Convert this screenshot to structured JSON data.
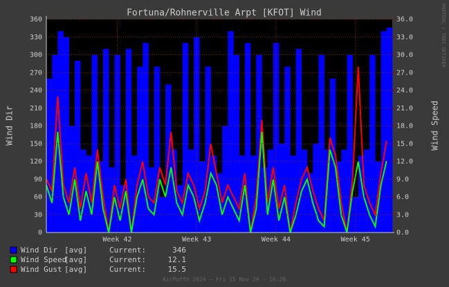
{
  "chart_data": {
    "type": "rrd",
    "title": "Fortuna/Rohnerville Arpt [KFOT] Wind",
    "y_label": "Wind Dir",
    "y2_label": "Wind Speed",
    "side_label": "RRDTOOL / TOBI OETIKER",
    "footer": "AirPuff® 2024 — Fri 15 Nov 24 - 16:20",
    "xlim": [
      0,
      30.5
    ],
    "xticks": [
      {
        "value": 6.25,
        "label": "Week 42"
      },
      {
        "value": 13.25,
        "label": "Week 43"
      },
      {
        "value": 20.25,
        "label": "Week 44"
      },
      {
        "value": 27.25,
        "label": "Week 45"
      }
    ],
    "ylim": [
      0,
      360
    ],
    "yticks": [
      0,
      30,
      60,
      90,
      120,
      150,
      180,
      210,
      240,
      270,
      300,
      330,
      360
    ],
    "y2lim": [
      0,
      36
    ],
    "y2ticks": [
      {
        "value": 0,
        "label": "0.0"
      },
      {
        "value": 3,
        "label": "3.0"
      },
      {
        "value": 6,
        "label": "6.0"
      },
      {
        "value": 9,
        "label": "9.0"
      },
      {
        "value": 12,
        "label": "12.0"
      },
      {
        "value": 15,
        "label": "15.0"
      },
      {
        "value": 18,
        "label": "18.0"
      },
      {
        "value": 21,
        "label": "21.0"
      },
      {
        "value": 24,
        "label": "24.0"
      },
      {
        "value": 27,
        "label": "27.0"
      },
      {
        "value": 30,
        "label": "30.0"
      },
      {
        "value": 33,
        "label": "33.0"
      },
      {
        "value": 36,
        "label": "36.0"
      }
    ],
    "grid": true,
    "x": [
      0,
      0.5,
      1,
      1.5,
      2,
      2.5,
      3,
      3.5,
      4,
      4.5,
      5,
      5.5,
      6,
      6.5,
      7,
      7.5,
      8,
      8.5,
      9,
      9.5,
      10,
      10.5,
      11,
      11.5,
      12,
      12.5,
      13,
      13.5,
      14,
      14.5,
      15,
      15.5,
      16,
      16.5,
      17,
      17.5,
      18,
      18.5,
      19,
      19.5,
      20,
      20.5,
      21,
      21.5,
      22,
      22.5,
      23,
      23.5,
      24,
      24.5,
      25,
      25.5,
      26,
      26.5,
      27,
      27.5,
      28,
      28.5,
      29,
      29.5,
      30
    ],
    "series": [
      {
        "name": "Wind Dir",
        "stat": "[avg]",
        "current_label": "Current:",
        "current": 346,
        "color": "#0000ff",
        "style": "bars",
        "values": [
          260,
          300,
          340,
          330,
          180,
          290,
          140,
          130,
          300,
          120,
          310,
          110,
          300,
          80,
          310,
          130,
          280,
          320,
          110,
          280,
          60,
          250,
          140,
          80,
          320,
          140,
          330,
          120,
          280,
          130,
          100,
          180,
          340,
          300,
          130,
          320,
          130,
          300,
          110,
          140,
          320,
          150,
          280,
          130,
          310,
          140,
          100,
          150,
          300,
          140,
          260,
          120,
          140,
          300,
          60,
          130,
          140,
          300,
          120,
          340,
          346
        ]
      },
      {
        "name": "Wind Speed",
        "stat": "[avg]",
        "current_label": "Current:",
        "current": 12.1,
        "color": "#00ff00",
        "style": "line",
        "axis": "y2",
        "values": [
          8,
          5,
          17,
          6,
          3,
          9,
          2,
          7,
          3,
          12,
          4,
          0,
          6,
          2,
          7,
          0,
          6,
          9,
          4,
          3,
          9,
          6,
          11,
          5,
          3,
          8,
          6,
          2,
          5,
          10,
          8,
          3,
          6,
          4,
          2,
          8,
          0,
          4,
          17,
          3,
          9,
          2,
          6,
          0,
          3,
          7,
          9,
          5,
          2,
          1,
          14,
          11,
          3,
          0,
          7,
          12,
          6,
          3,
          1,
          8,
          12.1
        ]
      },
      {
        "name": "Wind Gust",
        "stat": "[avg]",
        "current_label": "Current:",
        "current": 15.5,
        "color": "#ff0000",
        "style": "line",
        "axis": "y2",
        "values": [
          9,
          7,
          23,
          8,
          5,
          11,
          4,
          10,
          5,
          14,
          6,
          0,
          8,
          4,
          9,
          0,
          8,
          12,
          6,
          5,
          11,
          8,
          17,
          7,
          5,
          10,
          8,
          4,
          7,
          15,
          10,
          5,
          8,
          6,
          4,
          10,
          0,
          6,
          19,
          5,
          11,
          4,
          8,
          0,
          5,
          9,
          11,
          7,
          4,
          2,
          16,
          13,
          5,
          0,
          9,
          28,
          8,
          5,
          3,
          10,
          15.5
        ]
      }
    ]
  }
}
